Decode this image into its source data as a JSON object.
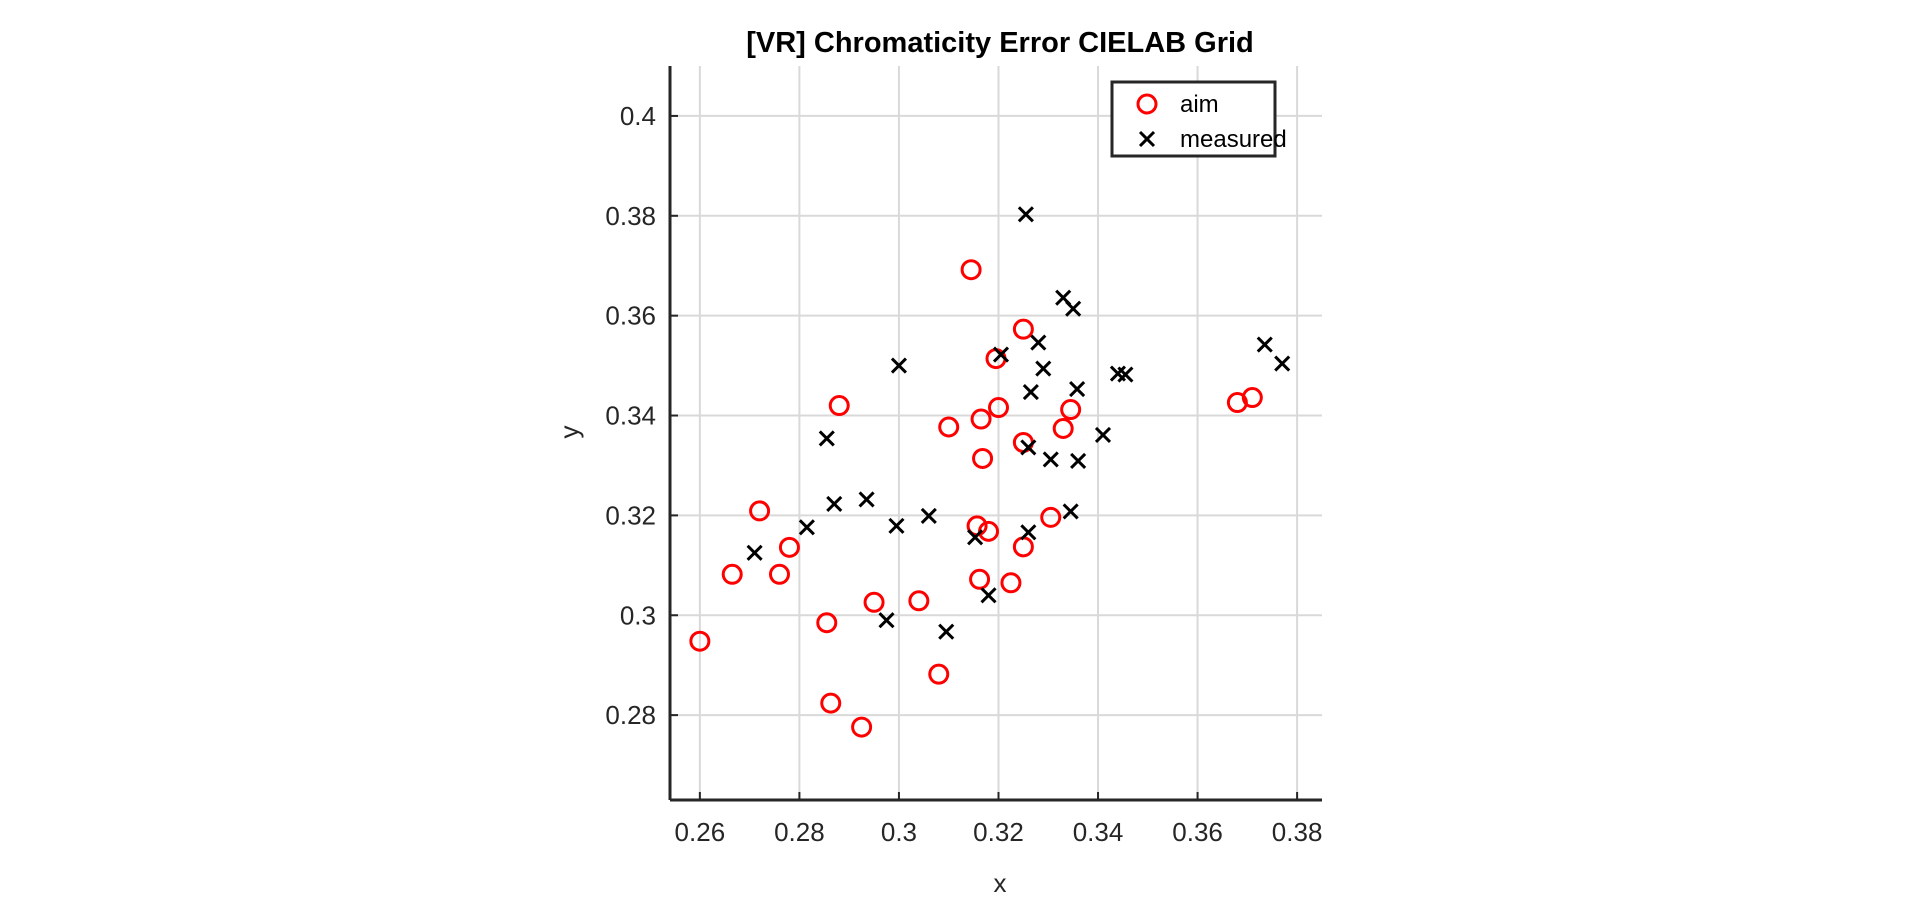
{
  "chart_data": {
    "type": "scatter",
    "title": "[VR] Chromaticity Error CIELAB Grid",
    "xlabel": "x",
    "ylabel": "y",
    "xlim": [
      0.254,
      0.385
    ],
    "ylim": [
      0.263,
      0.41
    ],
    "xticks": [
      0.26,
      0.28,
      0.3,
      0.32,
      0.34,
      0.36,
      0.38
    ],
    "xtick_labels": [
      "0.26",
      "0.28",
      "0.3",
      "0.32",
      "0.34",
      "0.36",
      "0.38"
    ],
    "yticks": [
      0.28,
      0.3,
      0.32,
      0.34,
      0.36,
      0.38,
      0.4
    ],
    "ytick_labels": [
      "0.28",
      "0.3",
      "0.32",
      "0.34",
      "0.36",
      "0.38",
      "0.4"
    ],
    "grid": true,
    "legend_position": "top-right",
    "series": [
      {
        "name": "aim",
        "marker": "circle",
        "color": "#ff0000",
        "points": [
          [
            0.26,
            0.2948
          ],
          [
            0.2665,
            0.3082
          ],
          [
            0.272,
            0.3209
          ],
          [
            0.276,
            0.3082
          ],
          [
            0.278,
            0.3136
          ],
          [
            0.2855,
            0.2985
          ],
          [
            0.2863,
            0.2824
          ],
          [
            0.288,
            0.342
          ],
          [
            0.2925,
            0.2776
          ],
          [
            0.295,
            0.3026
          ],
          [
            0.304,
            0.3029
          ],
          [
            0.308,
            0.2882
          ],
          [
            0.31,
            0.3377
          ],
          [
            0.3145,
            0.3692
          ],
          [
            0.3157,
            0.3179
          ],
          [
            0.3162,
            0.3072
          ],
          [
            0.3165,
            0.3393
          ],
          [
            0.3168,
            0.3314
          ],
          [
            0.318,
            0.3168
          ],
          [
            0.3195,
            0.3514
          ],
          [
            0.32,
            0.3416
          ],
          [
            0.3225,
            0.3065
          ],
          [
            0.325,
            0.3573
          ],
          [
            0.325,
            0.3346
          ],
          [
            0.325,
            0.3137
          ],
          [
            0.3305,
            0.3196
          ],
          [
            0.333,
            0.3374
          ],
          [
            0.3345,
            0.3412
          ],
          [
            0.368,
            0.3426
          ],
          [
            0.371,
            0.3436
          ]
        ]
      },
      {
        "name": "measured",
        "marker": "x",
        "color": "#000000",
        "points": [
          [
            0.271,
            0.3125
          ],
          [
            0.2815,
            0.3176
          ],
          [
            0.2855,
            0.3354
          ],
          [
            0.287,
            0.3223
          ],
          [
            0.2935,
            0.3232
          ],
          [
            0.2975,
            0.299
          ],
          [
            0.2995,
            0.3179
          ],
          [
            0.3,
            0.35
          ],
          [
            0.306,
            0.3199
          ],
          [
            0.3095,
            0.2967
          ],
          [
            0.3153,
            0.3156
          ],
          [
            0.318,
            0.304
          ],
          [
            0.3205,
            0.3522
          ],
          [
            0.3255,
            0.3803
          ],
          [
            0.326,
            0.3336
          ],
          [
            0.326,
            0.3166
          ],
          [
            0.3265,
            0.3447
          ],
          [
            0.328,
            0.3546
          ],
          [
            0.329,
            0.3494
          ],
          [
            0.3305,
            0.3312
          ],
          [
            0.333,
            0.3636
          ],
          [
            0.3345,
            0.3208
          ],
          [
            0.335,
            0.3614
          ],
          [
            0.3358,
            0.3453
          ],
          [
            0.336,
            0.3309
          ],
          [
            0.341,
            0.3361
          ],
          [
            0.344,
            0.3484
          ],
          [
            0.3455,
            0.3482
          ],
          [
            0.3735,
            0.3542
          ],
          [
            0.377,
            0.3504
          ]
        ]
      }
    ]
  }
}
